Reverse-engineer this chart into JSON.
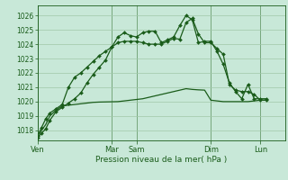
{
  "bg_color": "#c8e8d8",
  "grid_color": "#a0c8a8",
  "line_color": "#1a5c1a",
  "xlabel": "Pression niveau de la mer( hPa )",
  "ylim": [
    1017.3,
    1026.7
  ],
  "yticks": [
    1018,
    1019,
    1020,
    1021,
    1022,
    1023,
    1024,
    1025,
    1026
  ],
  "xlim": [
    0,
    240
  ],
  "day_labels": [
    "Ven",
    "Mar",
    "Sam",
    "Dim",
    "Lun"
  ],
  "day_positions": [
    0,
    72,
    96,
    168,
    216
  ],
  "series1_x": [
    0,
    4,
    8,
    12,
    18,
    24,
    30,
    36,
    42,
    48,
    54,
    60,
    66,
    72,
    78,
    84,
    90,
    96,
    102,
    108,
    114,
    120,
    126,
    132,
    138,
    144,
    150,
    156,
    162,
    168,
    174,
    180,
    186,
    192,
    198,
    204,
    210,
    216,
    222
  ],
  "series1_y": [
    1017.5,
    1017.8,
    1018.1,
    1018.7,
    1019.3,
    1019.6,
    1019.9,
    1020.2,
    1020.6,
    1021.3,
    1021.9,
    1022.4,
    1022.9,
    1023.8,
    1024.5,
    1024.8,
    1024.6,
    1024.5,
    1024.8,
    1024.9,
    1024.9,
    1024.1,
    1024.3,
    1024.5,
    1025.3,
    1026.0,
    1025.7,
    1024.1,
    1024.2,
    1024.2,
    1023.5,
    1022.6,
    1021.3,
    1020.7,
    1020.2,
    1021.2,
    1020.2,
    1020.2,
    1020.2
  ],
  "series2_x": [
    0,
    4,
    8,
    12,
    18,
    24,
    30,
    36,
    42,
    48,
    54,
    60,
    66,
    72,
    78,
    84,
    90,
    96,
    102,
    108,
    114,
    120,
    126,
    132,
    138,
    144,
    150,
    156,
    162,
    168,
    174,
    180,
    186,
    192,
    198,
    204,
    210,
    216,
    222
  ],
  "series2_y": [
    1017.6,
    1018.0,
    1018.4,
    1019.0,
    1019.4,
    1019.7,
    1019.75,
    1019.8,
    1019.85,
    1019.9,
    1019.95,
    1019.97,
    1019.98,
    1019.99,
    1020.0,
    1020.05,
    1020.1,
    1020.15,
    1020.2,
    1020.3,
    1020.4,
    1020.5,
    1020.6,
    1020.7,
    1020.8,
    1020.9,
    1020.85,
    1020.82,
    1020.8,
    1020.1,
    1020.05,
    1020.0,
    1020.0,
    1020.0,
    1020.0,
    1020.0,
    1020.05,
    1020.1,
    1020.1
  ],
  "series3_x": [
    0,
    4,
    8,
    12,
    18,
    24,
    30,
    36,
    42,
    48,
    54,
    60,
    66,
    72,
    78,
    84,
    90,
    96,
    102,
    108,
    114,
    120,
    126,
    132,
    138,
    144,
    150,
    156,
    162,
    168,
    174,
    180,
    186,
    192,
    198,
    204,
    210,
    216,
    222
  ],
  "series3_y": [
    1017.6,
    1018.2,
    1018.8,
    1019.2,
    1019.5,
    1019.8,
    1021.0,
    1021.7,
    1022.0,
    1022.4,
    1022.8,
    1023.2,
    1023.5,
    1023.8,
    1024.1,
    1024.2,
    1024.2,
    1024.2,
    1024.1,
    1024.0,
    1024.0,
    1024.0,
    1024.2,
    1024.4,
    1024.35,
    1025.5,
    1025.8,
    1024.7,
    1024.1,
    1024.1,
    1023.7,
    1023.3,
    1021.2,
    1020.8,
    1020.7,
    1020.7,
    1020.5,
    1020.1,
    1020.1
  ]
}
